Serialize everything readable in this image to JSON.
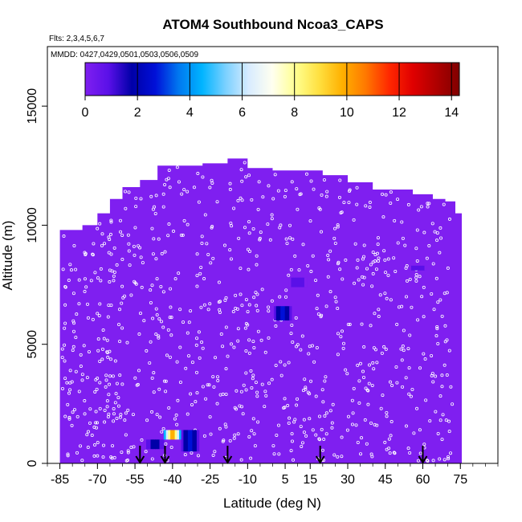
{
  "chart_data": {
    "type": "heatmap",
    "title": "ATOM4 Southbound Ncoa3_CAPS",
    "flights_note": "Flts: 2,3,4,5,6,7",
    "dates_note": "MMDD: 0427,0429,0501,0503,0506,0509",
    "xlabel": "Latitude (deg N)",
    "ylabel": "Altitude (m)",
    "xlim": [
      -90,
      90
    ],
    "ylim": [
      0,
      17500
    ],
    "x_ticks": [
      "-85",
      "-70",
      "-55",
      "-40",
      "-25",
      "-10",
      "5",
      "15",
      "30",
      "45",
      "60",
      "75"
    ],
    "x_tick_values": [
      -85,
      -70,
      -55,
      -40,
      -25,
      -10,
      5,
      15,
      30,
      45,
      60,
      75
    ],
    "y_ticks": [
      "0",
      "5000",
      "10000",
      "15000"
    ],
    "y_tick_values": [
      0,
      5000,
      10000,
      15000
    ],
    "colorbar": {
      "range": [
        0,
        14.3
      ],
      "ticks": [
        "0",
        "2",
        "4",
        "6",
        "8",
        "10",
        "12",
        "14"
      ],
      "tick_values": [
        0,
        2,
        4,
        6,
        8,
        10,
        12,
        14
      ],
      "colors": [
        "#7f1ff0",
        "#5a10e8",
        "#0000a8",
        "#0010d8",
        "#0078f0",
        "#00b4ff",
        "#7ad0ff",
        "#d8ecff",
        "#fffff0",
        "#ffff90",
        "#ffe040",
        "#ffb000",
        "#ff7800",
        "#ff2800",
        "#e00000",
        "#b00000",
        "#800000"
      ]
    },
    "background_value": 0,
    "domain_profile": [
      {
        "lat": -85,
        "top": 9800
      },
      {
        "lat": -76,
        "top": 10000
      },
      {
        "lat": -70,
        "top": 10500
      },
      {
        "lat": -65,
        "top": 11100
      },
      {
        "lat": -60,
        "top": 11600
      },
      {
        "lat": -53,
        "top": 11900
      },
      {
        "lat": -46,
        "top": 12500
      },
      {
        "lat": -35,
        "top": 12500
      },
      {
        "lat": -28,
        "top": 12600
      },
      {
        "lat": -18,
        "top": 12800
      },
      {
        "lat": -10,
        "top": 12400
      },
      {
        "lat": 0,
        "top": 12300
      },
      {
        "lat": 10,
        "top": 12300
      },
      {
        "lat": 20,
        "top": 12100
      },
      {
        "lat": 30,
        "top": 11800
      },
      {
        "lat": 40,
        "top": 11500
      },
      {
        "lat": 48,
        "top": 11500
      },
      {
        "lat": 56,
        "top": 11300
      },
      {
        "lat": 64,
        "top": 11100
      },
      {
        "lat": 69,
        "top": 11000
      },
      {
        "lat": 73,
        "top": 10500
      }
    ],
    "profile_markers_lat": [
      -53,
      -43,
      -18,
      19,
      60
    ],
    "features": [
      {
        "lat": 4,
        "alt_bottom": 6000,
        "alt_top": 6600,
        "value": 2.5
      },
      {
        "lat": 10,
        "alt_bottom": 7400,
        "alt_top": 7800,
        "value": 1.0
      },
      {
        "lat": -47,
        "alt_bottom": 600,
        "alt_top": 1000,
        "value": 2.0
      },
      {
        "lat": -40,
        "alt_bottom": 1000,
        "alt_top": 1400,
        "value": 11.0
      },
      {
        "lat": -33,
        "alt_bottom": 500,
        "alt_top": 1400,
        "value": 2.5
      },
      {
        "lat": 58,
        "alt_bottom": 8100,
        "alt_top": 8300,
        "value": 1.0
      }
    ]
  }
}
